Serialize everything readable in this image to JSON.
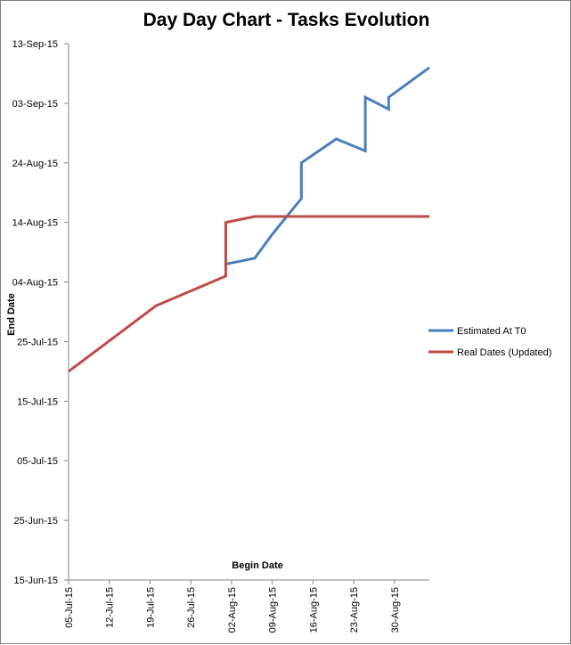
{
  "chart_data": {
    "type": "line",
    "title": "Day Day Chart - Tasks Evolution",
    "xlabel": "Begin Date",
    "ylabel": "End Date",
    "x_ticks": [
      "05-Jul-15",
      "12-Jul-15",
      "19-Jul-15",
      "26-Jul-15",
      "02-Aug-15",
      "09-Aug-15",
      "16-Aug-15",
      "23-Aug-15",
      "30-Aug-15"
    ],
    "y_ticks": [
      "15-Jun-15",
      "25-Jun-15",
      "05-Jul-15",
      "15-Jul-15",
      "25-Jul-15",
      "04-Aug-15",
      "14-Aug-15",
      "24-Aug-15",
      "03-Sep-15",
      "13-Sep-15"
    ],
    "xlim": [
      "2015-07-05",
      "2015-09-05"
    ],
    "ylim": [
      "2015-06-15",
      "2015-09-13"
    ],
    "legend_position": "right",
    "series": [
      {
        "name": "Estimated At T0",
        "color": "#4a7ebb",
        "points": [
          [
            "2015-08-01",
            "2015-08-07"
          ],
          [
            "2015-08-06",
            "2015-08-08"
          ],
          [
            "2015-08-09",
            "2015-08-12"
          ],
          [
            "2015-08-14",
            "2015-08-18"
          ],
          [
            "2015-08-14",
            "2015-08-24"
          ],
          [
            "2015-08-20",
            "2015-08-28"
          ],
          [
            "2015-08-25",
            "2015-08-26"
          ],
          [
            "2015-08-25",
            "2015-09-04"
          ],
          [
            "2015-08-29",
            "2015-09-02"
          ],
          [
            "2015-08-29",
            "2015-09-04"
          ],
          [
            "2015-09-05",
            "2015-09-09"
          ]
        ]
      },
      {
        "name": "Real Dates (Updated)",
        "color": "#be4b48",
        "points": [
          [
            "2015-07-05",
            "2015-07-20"
          ],
          [
            "2015-07-20",
            "2015-07-31"
          ],
          [
            "2015-08-01",
            "2015-08-05"
          ],
          [
            "2015-08-01",
            "2015-08-14"
          ],
          [
            "2015-08-06",
            "2015-08-15"
          ],
          [
            "2015-09-05",
            "2015-08-15"
          ]
        ]
      }
    ]
  }
}
